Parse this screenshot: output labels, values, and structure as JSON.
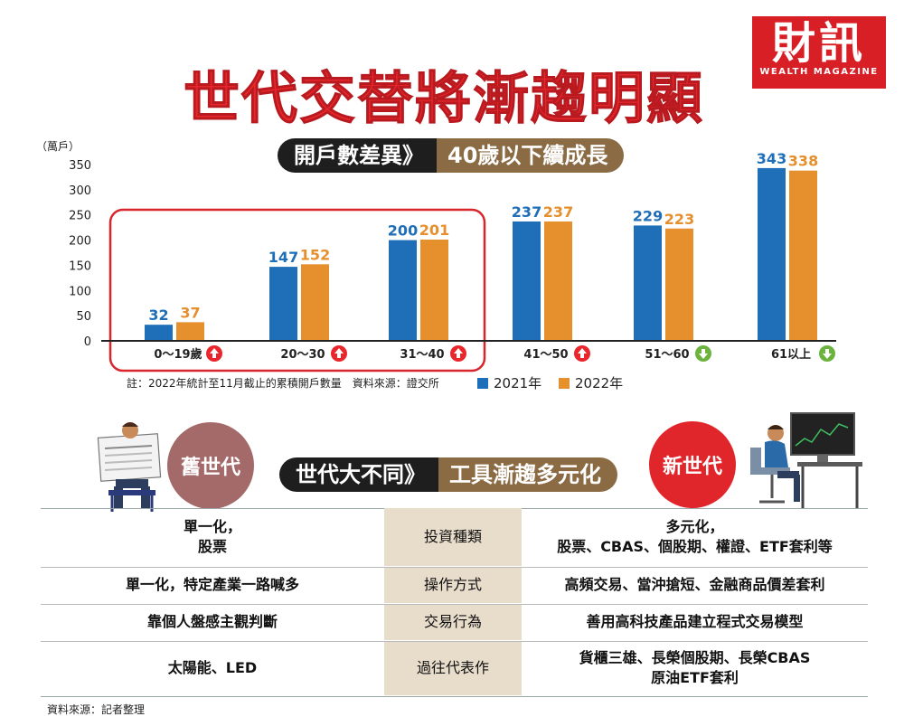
{
  "title": "世代交替將漸趨明顯",
  "logo": {
    "name": "財訊",
    "sub": "WEALTH MAGAZINE"
  },
  "section1": {
    "left": "開戶數差異》",
    "right": "40歲以下續成長"
  },
  "chart_data": {
    "type": "bar",
    "unit_label": "（萬戶）",
    "categories": [
      "0～19歲",
      "20～30",
      "31～40",
      "41～50",
      "51～60",
      "61以上"
    ],
    "series": [
      {
        "name": "2021年",
        "color": "#1f6fb8",
        "values": [
          32,
          147,
          200,
          237,
          229,
          343
        ]
      },
      {
        "name": "2022年",
        "color": "#e58f2d",
        "values": [
          37,
          152,
          201,
          237,
          223,
          338
        ]
      }
    ],
    "yticks": [
      0,
      50,
      100,
      150,
      200,
      250,
      300,
      350
    ],
    "ylim": [
      0,
      350
    ],
    "trend": [
      "up",
      "up",
      "up",
      "up",
      "down",
      "down"
    ],
    "note": "註：2022年統計至11月截止的累積開戶數量　資料來源：證交所",
    "legend": [
      "2021年",
      "2022年"
    ]
  },
  "section2": {
    "left": "世代大不同》",
    "right": "工具漸趨多元化"
  },
  "old_gen": "舊世代",
  "new_gen": "新世代",
  "comparison": [
    {
      "old": "單一化，\n股票",
      "aspect": "投資種類",
      "new": "多元化，\n股票、CBAS、個股期、權證、ETF套利等"
    },
    {
      "old": "單一化，特定產業一路喊多",
      "aspect": "操作方式",
      "new": "高頻交易、當沖搶短、金融商品價差套利"
    },
    {
      "old": "靠個人盤感主觀判斷",
      "aspect": "交易行為",
      "new": "善用高科技產品建立程式交易模型"
    },
    {
      "old": "太陽能、LED",
      "aspect": "過往代表作",
      "new": "貨櫃三雄、長榮個股期、長榮CBAS\n原油ETF套利"
    }
  ],
  "footer": "資料來源：記者整理",
  "colors": {
    "title": "#e8262c",
    "blue": "#1f6fb8",
    "orange": "#e58f2d",
    "up": "#e8262c",
    "down": "#6cb33e",
    "old_gen": "#a46a6a",
    "new_gen": "#e0262b"
  }
}
